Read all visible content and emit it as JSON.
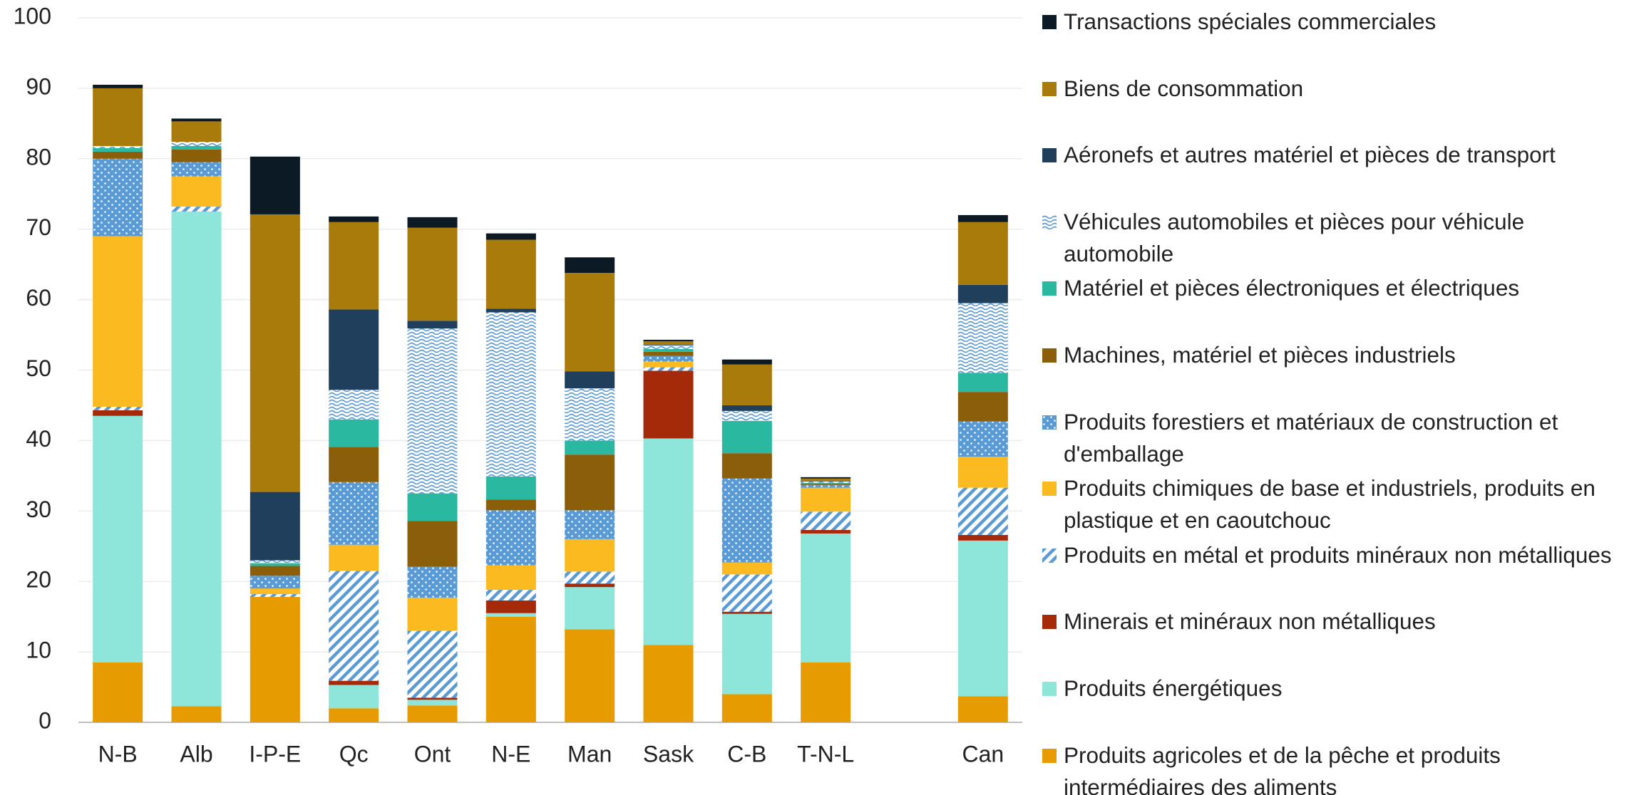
{
  "chart_data": {
    "type": "stacked_bar",
    "categories": [
      "N-B",
      "Alb",
      "I-P-E",
      "Qc",
      "Ont",
      "N-E",
      "Man",
      "Sask",
      "C-B",
      "T-N-L",
      null,
      "Can"
    ],
    "ylim": [
      0,
      100
    ],
    "yticks": [
      0,
      10,
      20,
      30,
      40,
      50,
      60,
      70,
      80,
      90,
      100
    ],
    "grid": true,
    "legend": "right",
    "series": [
      {
        "name": "Produits agricoles et de la pêche et produits intermédiaires des aliments",
        "color": "#e69c00",
        "values": [
          8.5,
          2.3,
          17.8,
          2,
          2.4,
          15,
          13.2,
          11,
          4,
          8.5,
          null,
          3.7
        ]
      },
      {
        "name": "Produits énergétiques",
        "color": "#8ee5d9",
        "values": [
          35,
          70.2,
          0,
          3.3,
          0.8,
          0.5,
          6,
          29.3,
          11.4,
          18.3,
          null,
          22.1
        ]
      },
      {
        "name": "Minerais et minéraux non métalliques",
        "color": "#a52a0a",
        "values": [
          0.8,
          0,
          0,
          0.6,
          0.3,
          1.8,
          0.5,
          9.6,
          0.3,
          0.5,
          null,
          0.8
        ]
      },
      {
        "name": "Produits en métal et produits minéraux non métalliques",
        "color": "#5b9bd5",
        "pattern": "diagonal",
        "values": [
          0.5,
          0.7,
          0.4,
          15.6,
          9.5,
          1.5,
          1.7,
          0.5,
          5.3,
          2.6,
          null,
          6.7
        ]
      },
      {
        "name": "Produits chimiques de base et industriels, produits en plastique et en caoutchouc",
        "color": "#fbba1f",
        "values": [
          24.2,
          4.3,
          0.8,
          3.7,
          4.7,
          3.5,
          4.6,
          0.8,
          1.7,
          3.4,
          null,
          4.4
        ]
      },
      {
        "name": "Produits forestiers et matériaux de construction et d'emballage",
        "color": "#5b9bd5",
        "pattern": "dots",
        "values": [
          11,
          2,
          1.8,
          8.9,
          4.4,
          7.8,
          4.1,
          0.8,
          11.9,
          0.4,
          null,
          5
        ]
      },
      {
        "name": "Machines, matériel et pièces industriels",
        "color": "#8b5e0a",
        "values": [
          1,
          1.8,
          1.4,
          5,
          6.5,
          1.5,
          7.9,
          0.6,
          3.6,
          0.2,
          null,
          4.2
        ]
      },
      {
        "name": "Matériel et pièces électroniques et électriques",
        "color": "#2bb8a0",
        "values": [
          0.5,
          0.5,
          0.4,
          3.9,
          3.9,
          3.3,
          2,
          0.4,
          4.6,
          0.1,
          null,
          2.7
        ]
      },
      {
        "name": "Véhicules automobiles et pièces pour véhicule automobile",
        "color": "#5b9bd5",
        "pattern": "waves",
        "values": [
          0.3,
          0.6,
          0.4,
          4.2,
          23.4,
          23.3,
          7.4,
          0.5,
          1.4,
          0.2,
          null,
          9.9
        ]
      },
      {
        "name": "Aéronefs et autres matériel et pièces de transport",
        "color": "#1f3f5c",
        "values": [
          0,
          0,
          9.7,
          11.4,
          1.1,
          0.5,
          2.4,
          0.1,
          0.8,
          0.1,
          null,
          2.6
        ]
      },
      {
        "name": "Biens de consommation",
        "color": "#a87b0a",
        "values": [
          8.2,
          2.9,
          39.4,
          12.4,
          13.2,
          9.8,
          14,
          0.5,
          5.8,
          0.3,
          null,
          8.9
        ]
      },
      {
        "name": "Transactions spéciales commerciales",
        "color": "#0b1a24",
        "values": [
          0.5,
          0.4,
          8.2,
          0.8,
          1.5,
          0.9,
          2.2,
          0.2,
          0.7,
          0.2,
          null,
          1
        ]
      }
    ]
  }
}
